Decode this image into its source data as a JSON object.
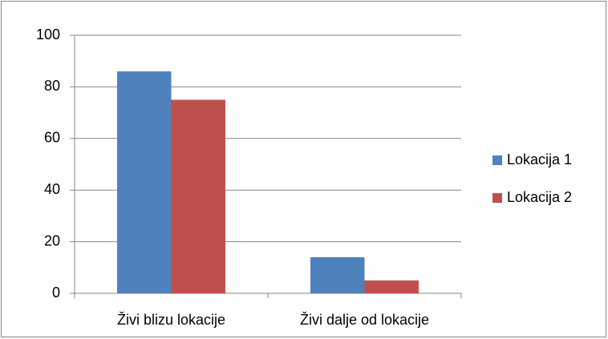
{
  "chart_data": {
    "type": "bar",
    "categories": [
      "Živi blizu lokacije",
      "Živi dalje od lokacije"
    ],
    "series": [
      {
        "name": "Lokacija 1",
        "color": "#4f81bd",
        "values": [
          86,
          14
        ]
      },
      {
        "name": "Lokacija 2",
        "color": "#c0504d",
        "values": [
          75,
          5
        ]
      }
    ],
    "ylim": [
      0,
      100
    ],
    "yticks": [
      0,
      20,
      40,
      60,
      80,
      100
    ],
    "grid": true,
    "legend": "right"
  }
}
